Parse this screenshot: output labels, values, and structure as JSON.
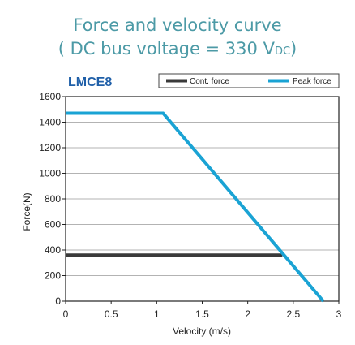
{
  "chart_data": {
    "type": "line",
    "title_line1": "Force and velocity curve",
    "title_line2_prefix": "( DC bus voltage = 330 V",
    "title_line2_sub": "DC",
    "title_line2_suffix": ")",
    "chart_label": "LMCE8",
    "xlabel": "Velocity (m/s)",
    "ylabel": "Force(N)",
    "xlim": [
      0,
      3
    ],
    "ylim": [
      0,
      1600
    ],
    "x_ticks": [
      {
        "v": 0,
        "label": "0"
      },
      {
        "v": 0.5,
        "label": "0.5"
      },
      {
        "v": 1,
        "label": "1"
      },
      {
        "v": 1.5,
        "label": "1.5"
      },
      {
        "v": 2,
        "label": "2"
      },
      {
        "v": 2.5,
        "label": "2.5"
      },
      {
        "v": 3,
        "label": "3"
      }
    ],
    "y_ticks": [
      {
        "v": 0,
        "label": "0"
      },
      {
        "v": 200,
        "label": "200"
      },
      {
        "v": 400,
        "label": "400"
      },
      {
        "v": 600,
        "label": "600"
      },
      {
        "v": 800,
        "label": "800"
      },
      {
        "v": 1000,
        "label": "1000"
      },
      {
        "v": 1200,
        "label": "1200"
      },
      {
        "v": 1400,
        "label": "1400"
      },
      {
        "v": 1600,
        "label": "1600"
      }
    ],
    "grid": "horizontal",
    "legend_placement": "top-right",
    "series": [
      {
        "name": "Cont. force",
        "color": "#3a3a3a",
        "x": [
          0,
          2.38
        ],
        "y": [
          360,
          360
        ]
      },
      {
        "name": "Peak force",
        "color": "#1aa3d4",
        "x": [
          0,
          1.07,
          2.83
        ],
        "y": [
          1470,
          1470,
          0
        ]
      }
    ]
  }
}
